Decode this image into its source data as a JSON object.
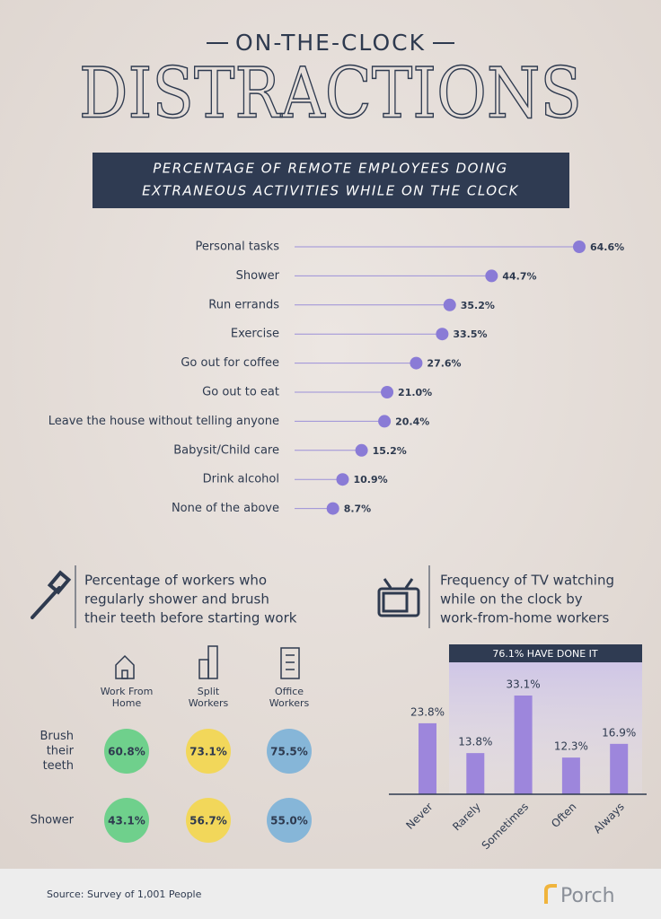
{
  "header": {
    "kicker": "ON-THE-CLOCK",
    "title": "DISTRACTIONS"
  },
  "chart_data": [
    {
      "type": "lollipop",
      "title_lines": [
        "PERCENTAGE OF REMOTE EMPLOYEES DOING",
        "EXTRANEOUS ACTIVITIES WHILE ON THE CLOCK"
      ],
      "categories": [
        "Personal tasks",
        "Shower",
        "Run errands",
        "Exercise",
        "Go out for coffee",
        "Go out to eat",
        "Leave the house without telling anyone",
        "Babysit/Child care",
        "Drink alcohol",
        "None of the above"
      ],
      "values": [
        64.6,
        44.7,
        35.2,
        33.5,
        27.6,
        21.0,
        20.4,
        15.2,
        10.9,
        8.7
      ],
      "value_labels": [
        "64.6%",
        "44.7%",
        "35.2%",
        "33.5%",
        "27.6%",
        "21.0%",
        "20.4%",
        "15.2%",
        "10.9%",
        "8.7%"
      ],
      "color": "#8a7bd6"
    },
    {
      "type": "bar",
      "title_lines": [
        "Frequency of TV watching",
        "while on the clock by",
        "work-from-home workers"
      ],
      "annotation": "76.1% HAVE DONE IT",
      "categories": [
        "Never",
        "Rarely",
        "Sometimes",
        "Often",
        "Always"
      ],
      "values": [
        23.8,
        13.8,
        33.1,
        12.3,
        16.9
      ],
      "value_labels": [
        "23.8%",
        "13.8%",
        "33.1%",
        "12.3%",
        "16.9%"
      ],
      "color": "#9d86dc"
    }
  ],
  "hygiene": {
    "title_lines": [
      "Percentage of workers who",
      "regularly shower and brush",
      "their teeth before starting work"
    ],
    "columns": [
      {
        "label_lines": [
          "Work From",
          "Home"
        ],
        "color": "#6fd08c"
      },
      {
        "label_lines": [
          "Split",
          "Workers"
        ],
        "color": "#f2d75a"
      },
      {
        "label_lines": [
          "Office",
          "Workers"
        ],
        "color": "#86b6d8"
      }
    ],
    "rows": [
      {
        "label_lines": [
          "Brush",
          "their",
          "teeth"
        ],
        "values": [
          "60.8%",
          "73.1%",
          "75.5%"
        ]
      },
      {
        "label_lines": [
          "Shower"
        ],
        "values": [
          "43.1%",
          "56.7%",
          "55.0%"
        ]
      }
    ]
  },
  "footer": {
    "source": "Source: Survey of 1,001 People",
    "brand": "Porch"
  }
}
